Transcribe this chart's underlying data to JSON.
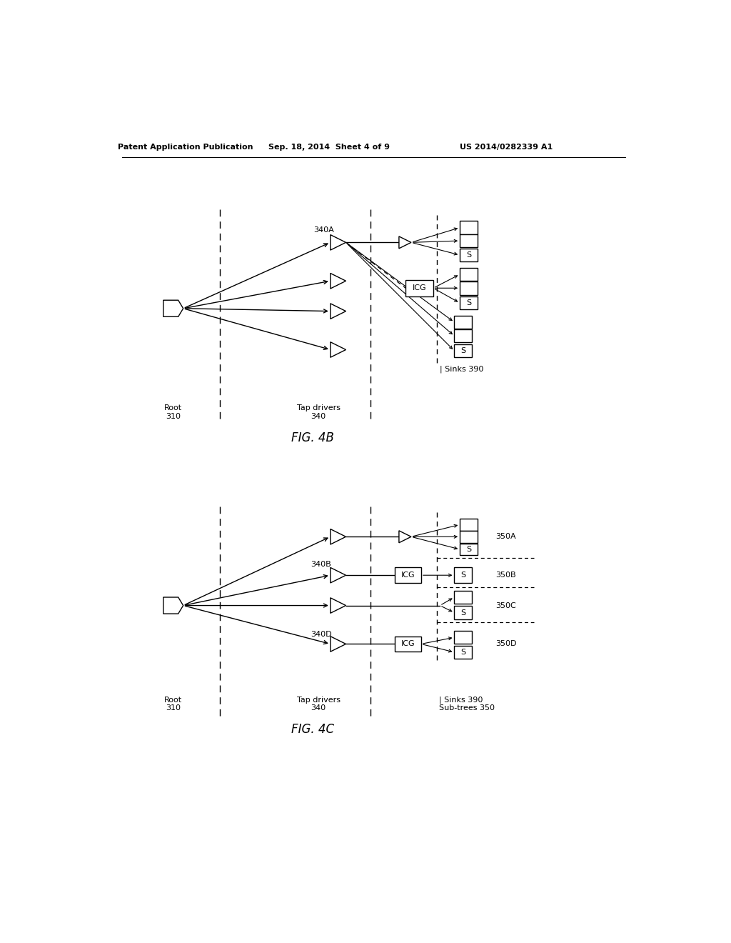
{
  "background": "#ffffff",
  "header_left": "Patent Application Publication",
  "header_mid": "Sep. 18, 2014  Sheet 4 of 9",
  "header_right": "US 2014/0282339 A1",
  "fig4b_label": "FIG. 4B",
  "fig4c_label": "FIG. 4C",
  "root_label": "Root\n310",
  "tap_label": "Tap drivers\n340",
  "sinks_label": "Sinks 390",
  "fig4b_340a": "340A",
  "fig4c_340b": "340B",
  "fig4c_340d": "340D",
  "fig4c_350a": "350A",
  "fig4c_350b": "350B",
  "fig4c_350c": "350C",
  "fig4c_350d": "350D",
  "subtrees_label": "Sub-trees 350"
}
